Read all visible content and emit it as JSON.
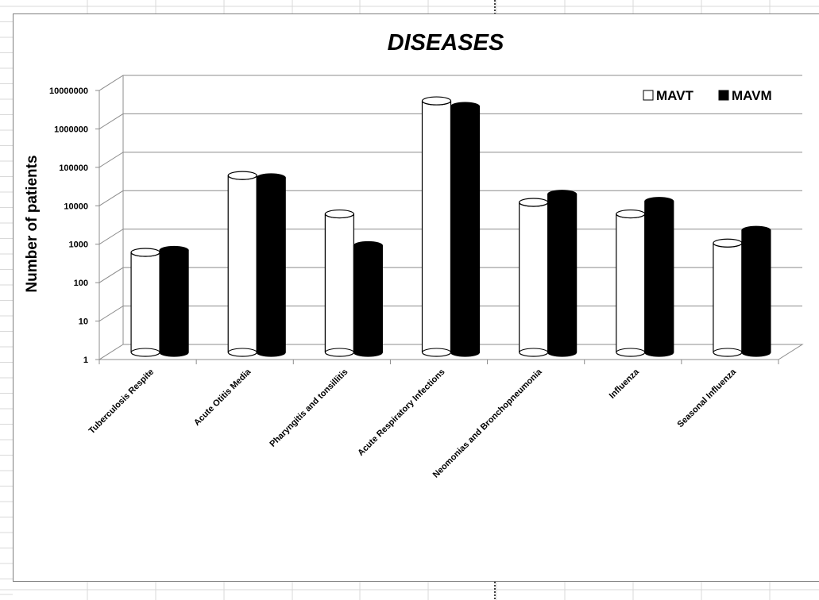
{
  "chart_data": {
    "type": "bar",
    "title": "DISEASES",
    "xlabel": "",
    "ylabel": "Number of patients",
    "yscale": "log",
    "ylim": [
      1,
      10000000
    ],
    "yticks": [
      "1",
      "10",
      "100",
      "1000",
      "10000",
      "100000",
      "1000000",
      "10000000"
    ],
    "grid": true,
    "legend_position": "top-right",
    "categories": [
      "Tuberculosis Respite",
      "Acute Otitis Media",
      "Pharyngitis and tonsillitis",
      "Acute Respiratory Infections",
      "Neomonias and Bronchopneumonia",
      "Influenza",
      "Seasonal Influenza"
    ],
    "series": [
      {
        "name": "MAVT",
        "color": "#ffffff",
        "values": [
          400,
          40000,
          4000,
          3500000,
          8000,
          4000,
          700
        ]
      },
      {
        "name": "MAVM",
        "color": "#000000",
        "values": [
          450,
          35000,
          600,
          2500000,
          13000,
          8500,
          1500
        ]
      }
    ]
  }
}
